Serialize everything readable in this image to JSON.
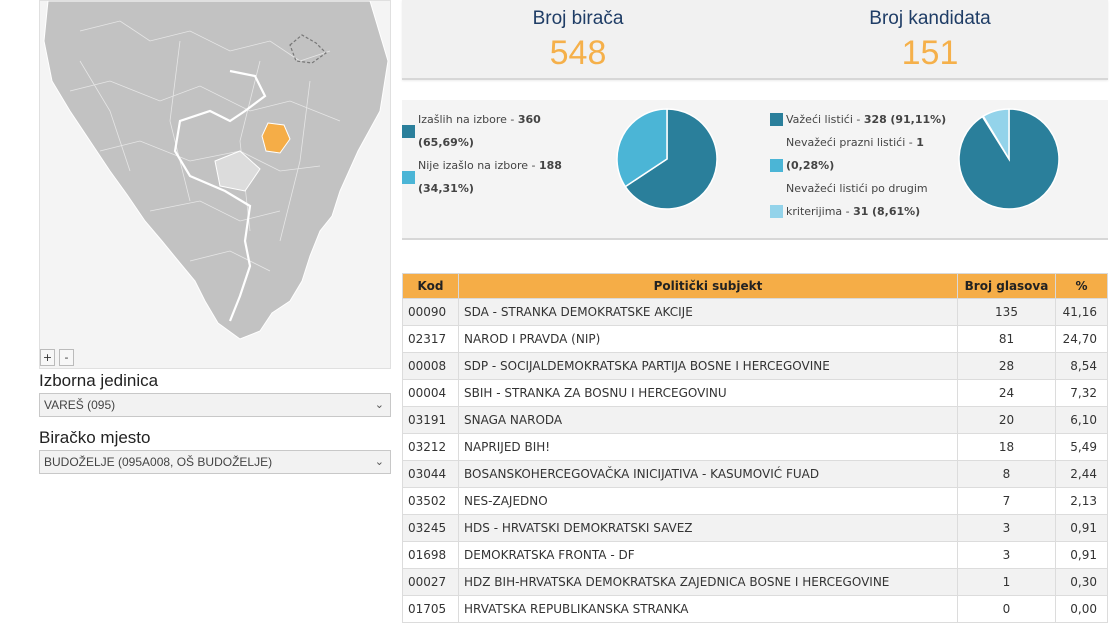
{
  "map": {
    "zoom_in_label": "+",
    "zoom_out_label": "-",
    "highlight_color": "#f5ad47"
  },
  "filters": {
    "unit_label": "Izborna jedinica",
    "unit_value": "VAREŠ (095)",
    "station_label": "Biračko mjesto",
    "station_value": "BUDOŽELJE (095A008, OŠ BUDOŽELJE)"
  },
  "stats": {
    "voters_label": "Broj birača",
    "voters_value": "548",
    "candidates_label": "Broj kandidata",
    "candidates_value": "151"
  },
  "turnout": {
    "items": [
      {
        "label": "Izašlih na izbore - ",
        "value": "360",
        "pct": "(65,69%)",
        "color": "#2a7f9b",
        "share": 65.69
      },
      {
        "label": "Nije izašlo na izbore - ",
        "value": "188",
        "pct": "(34,31%)",
        "color": "#4bb5d6",
        "share": 34.31
      }
    ]
  },
  "ballots": {
    "items": [
      {
        "label": "Važeći listići - ",
        "value": "328",
        "pct": "(91,11%)",
        "color": "#2a7f9b",
        "share": 91.11
      },
      {
        "label": "Nevažeći prazni listići - ",
        "value": "1",
        "pct": "(0,28%)",
        "color": "#4bb5d6",
        "share": 0.28
      },
      {
        "label": "Nevažeći listići po drugim kriterijima - ",
        "value": "31",
        "pct": "(8,61%)",
        "color": "#93d3ea",
        "share": 8.61
      }
    ]
  },
  "table": {
    "headers": {
      "code": "Kod",
      "party": "Politički subjekt",
      "votes": "Broj glasova",
      "pct": "%"
    },
    "rows": [
      {
        "code": "00090",
        "party": "SDA - STRANKA DEMOKRATSKE AKCIJE",
        "votes": "135",
        "pct": "41,16"
      },
      {
        "code": "02317",
        "party": "NAROD I PRAVDA (NIP)",
        "votes": "81",
        "pct": "24,70"
      },
      {
        "code": "00008",
        "party": "SDP - SOCIJALDEMOKRATSKA PARTIJA BOSNE I HERCEGOVINE",
        "votes": "28",
        "pct": "8,54"
      },
      {
        "code": "00004",
        "party": "SBIH - STRANKA ZA BOSNU I HERCEGOVINU",
        "votes": "24",
        "pct": "7,32"
      },
      {
        "code": "03191",
        "party": "SNAGA NARODA",
        "votes": "20",
        "pct": "6,10"
      },
      {
        "code": "03212",
        "party": "NAPRIJED BIH!",
        "votes": "18",
        "pct": "5,49"
      },
      {
        "code": "03044",
        "party": "BOSANSKOHERCEGOVAČKA INICIJATIVA - KASUMOVIĆ FUAD",
        "votes": "8",
        "pct": "2,44"
      },
      {
        "code": "03502",
        "party": "NES-ZAJEDNO",
        "votes": "7",
        "pct": "2,13"
      },
      {
        "code": "03245",
        "party": "HDS - HRVATSKI DEMOKRATSKI SAVEZ",
        "votes": "3",
        "pct": "0,91"
      },
      {
        "code": "01698",
        "party": "DEMOKRATSKA FRONTA - DF",
        "votes": "3",
        "pct": "0,91"
      },
      {
        "code": "00027",
        "party": "HDZ BIH-HRVATSKA DEMOKRATSKA ZAJEDNICA BOSNE I HERCEGOVINE",
        "votes": "1",
        "pct": "0,30"
      },
      {
        "code": "01705",
        "party": "HRVATSKA REPUBLIKANSKA STRANKA",
        "votes": "0",
        "pct": "0,00"
      }
    ]
  }
}
